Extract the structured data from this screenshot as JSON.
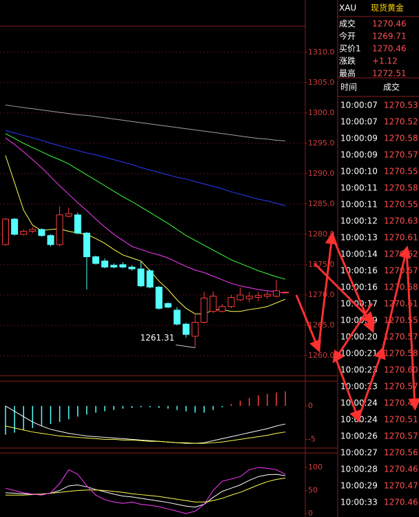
{
  "chart_data": [
    {
      "type": "candlestick",
      "categories": [
        null,
        null,
        null,
        null,
        null,
        null,
        null,
        null,
        null,
        null,
        null,
        null,
        null,
        null,
        null,
        null,
        null,
        null,
        null,
        null,
        null,
        null,
        null,
        null,
        null,
        null,
        null,
        null,
        null,
        null,
        null,
        null
      ],
      "open": [
        1278.3,
        1282.5,
        1280.0,
        1280.5,
        1280.8,
        1279.8,
        1278.3,
        1283.0,
        1283.2,
        1280.2,
        1276.3,
        1275.6,
        1274.9,
        1275.0,
        1274.6,
        1274.3,
        1274.0,
        1271.3,
        1268.6,
        1267.5,
        1265.2,
        1263.2,
        1265.5,
        1267.3,
        1267.3,
        1268.1,
        1269.2,
        1269.4,
        1269.6,
        1269.8,
        1269.8,
        1270.4
      ],
      "high": [
        1282.7,
        1282.7,
        1280.8,
        1281.2,
        1281.0,
        1280.0,
        1284.6,
        1284.4,
        1283.6,
        1280.4,
        1276.5,
        1276.0,
        1275.2,
        1275.4,
        1274.9,
        1275.6,
        1274.2,
        1271.5,
        1268.8,
        1268.0,
        1265.4,
        1267.0,
        1270.5,
        1270.6,
        1268.5,
        1270.0,
        1271.2,
        1270.5,
        1270.5,
        1270.6,
        1272.5,
        1270.6
      ],
      "low": [
        1278.1,
        1279.8,
        1279.8,
        1280.2,
        1279.6,
        1278.0,
        1278.0,
        1282.8,
        1280.0,
        1270.9,
        1275.0,
        1274.4,
        1274.4,
        1274.4,
        1274.0,
        1271.3,
        1271.1,
        1267.6,
        1267.8,
        1265.0,
        1263.0,
        1261.31,
        1265.3,
        1267.0,
        1267.1,
        1267.8,
        1269.0,
        1268.8,
        1269.0,
        1269.4,
        1269.6,
        1270.3
      ],
      "close": [
        1282.5,
        1280.0,
        1280.5,
        1280.8,
        1279.8,
        1278.3,
        1283.2,
        1283.4,
        1280.2,
        1276.3,
        1275.2,
        1274.6,
        1274.6,
        1274.6,
        1274.3,
        1271.5,
        1271.3,
        1267.8,
        1268.0,
        1265.2,
        1263.5,
        1265.5,
        1269.5,
        1269.8,
        1268.1,
        1269.6,
        1270.0,
        1269.8,
        1269.9,
        1270.1,
        1270.7,
        1270.46
      ],
      "up_color": "#ff3c3c",
      "down_color": "#54ffff",
      "ma_series": [
        {
          "color": "#a0a0a0",
          "values": [
            1301.3,
            1301.1,
            1300.9,
            1300.7,
            1300.5,
            1300.3,
            1300.1,
            1299.9,
            1299.7,
            1299.6,
            1299.4,
            1299.2,
            1299.0,
            1298.8,
            1298.6,
            1298.4,
            1298.2,
            1298.0,
            1297.8,
            1297.6,
            1297.4,
            1297.2,
            1297.0,
            1296.8,
            1296.6,
            1296.4,
            1296.2,
            1296.0,
            1295.8,
            1295.7,
            1295.5,
            1295.4
          ]
        },
        {
          "color": "#2a3cff",
          "values": [
            1297.1,
            1296.7,
            1296.3,
            1295.9,
            1295.5,
            1295.0,
            1294.6,
            1294.2,
            1293.8,
            1293.4,
            1293.1,
            1292.7,
            1292.3,
            1291.9,
            1291.5,
            1291.0,
            1290.6,
            1290.2,
            1289.8,
            1289.4,
            1289.1,
            1288.7,
            1288.3,
            1287.9,
            1287.5,
            1287.0,
            1286.6,
            1286.2,
            1285.8,
            1285.5,
            1285.1,
            1284.7
          ]
        },
        {
          "color": "#3cff3c",
          "values": [
            1296.6,
            1295.8,
            1295.0,
            1294.3,
            1293.6,
            1292.9,
            1292.3,
            1291.6,
            1290.7,
            1289.8,
            1288.9,
            1288.0,
            1287.1,
            1286.2,
            1285.4,
            1284.5,
            1283.6,
            1282.7,
            1281.8,
            1280.8,
            1279.8,
            1279.0,
            1278.2,
            1277.4,
            1276.6,
            1275.8,
            1275.2,
            1274.6,
            1274.0,
            1273.5,
            1273.0,
            1272.6
          ]
        },
        {
          "color": "#ff3cff",
          "values": [
            1295.9,
            1294.8,
            1293.6,
            1292.3,
            1291.0,
            1289.5,
            1288.0,
            1286.6,
            1285.2,
            1283.9,
            1282.5,
            1281.2,
            1280.0,
            1279.0,
            1278.0,
            1277.5,
            1277.0,
            1276.6,
            1276.1,
            1275.4,
            1274.7,
            1274.1,
            1273.7,
            1273.1,
            1272.5,
            1271.9,
            1271.5,
            1271.2,
            1270.9,
            1270.7,
            1270.5,
            1270.3
          ]
        },
        {
          "color": "#ffff50",
          "values": [
            1293.0,
            1288.5,
            1284.0,
            1281.5,
            1280.6,
            1280.8,
            1280.9,
            1280.5,
            1280.2,
            1280.0,
            1279.3,
            1278.5,
            1277.5,
            1276.6,
            1276.1,
            1275.6,
            1274.0,
            1272.3,
            1270.9,
            1269.2,
            1267.8,
            1266.9,
            1266.9,
            1267.5,
            1267.6,
            1267.3,
            1267.3,
            1267.6,
            1267.8,
            1268.1,
            1268.7,
            1269.3
          ]
        }
      ],
      "annotations": [
        {
          "text": "1261.31",
          "index": 21,
          "value": 1261.31
        }
      ],
      "ylim": [
        1256.7,
        1314.3
      ],
      "yticks": [
        {
          "value": 1260,
          "label": "1260.0"
        },
        {
          "value": 1265,
          "label": "1265.0"
        },
        {
          "value": 1270,
          "label": "1270.0"
        },
        {
          "value": 1275,
          "label": "1275.0"
        },
        {
          "value": 1280,
          "label": "1280.0"
        },
        {
          "value": 1285,
          "label": "1285.0"
        },
        {
          "value": 1290,
          "label": "1290.0"
        },
        {
          "value": 1295,
          "label": "1295.0"
        },
        {
          "value": 1300,
          "label": "1300.0"
        },
        {
          "value": 1305,
          "label": "1305.0"
        },
        {
          "value": 1310,
          "label": "1310.0"
        }
      ],
      "grid": true
    },
    {
      "type": "bar",
      "values": [
        -4.3,
        -4.0,
        -3.6,
        -3.3,
        -3.0,
        -2.7,
        -2.4,
        -2.0,
        -1.6,
        -1.3,
        -1.0,
        -0.8,
        -0.6,
        -0.4,
        -0.3,
        -0.2,
        -0.2,
        -0.3,
        -0.4,
        -0.6,
        -0.8,
        -1.0,
        -1.0,
        -0.6,
        -0.2,
        0.3,
        0.8,
        1.2,
        1.6,
        1.8,
        2.0,
        2.2
      ],
      "positive_color": "#ff3c3c",
      "negative_color": "#54ffff",
      "lines": [
        {
          "color": "#ffffff",
          "values": [
            0.0,
            -0.8,
            -1.6,
            -2.4,
            -3.0,
            -3.5,
            -3.8,
            -4.1,
            -4.3,
            -4.5,
            -4.6,
            -4.7,
            -4.8,
            -4.9,
            -5.0,
            -5.1,
            -5.2,
            -5.3,
            -5.4,
            -5.5,
            -5.6,
            -5.6,
            -5.5,
            -5.2,
            -4.9,
            -4.6,
            -4.3,
            -4.0,
            -3.7,
            -3.4,
            -3.0,
            -2.7
          ]
        },
        {
          "color": "#ffff50",
          "values": [
            -3.0,
            -3.3,
            -3.6,
            -3.9,
            -4.1,
            -4.3,
            -4.5,
            -4.6,
            -4.7,
            -4.8,
            -4.9,
            -5.0,
            -5.0,
            -5.1,
            -5.1,
            -5.2,
            -5.3,
            -5.3,
            -5.4,
            -5.5,
            -5.5,
            -5.6,
            -5.6,
            -5.5,
            -5.4,
            -5.2,
            -5.0,
            -4.8,
            -4.6,
            -4.4,
            -4.1,
            -3.9
          ]
        }
      ],
      "ylim": [
        -6.1,
        3.5
      ],
      "yticks": [
        0,
        -5
      ]
    },
    {
      "type": "line",
      "series": [
        {
          "color": "#ffffff",
          "values": [
            45,
            44,
            43,
            42,
            42,
            44,
            50,
            60,
            62,
            58,
            52,
            47,
            42,
            38,
            36,
            33,
            30,
            27,
            24,
            20,
            16,
            14,
            20,
            35,
            48,
            55,
            62,
            72,
            80,
            84,
            85,
            82
          ]
        },
        {
          "color": "#ffff50",
          "values": [
            40,
            40,
            40,
            41,
            42,
            44,
            46,
            48,
            50,
            51,
            51,
            50,
            48,
            46,
            43,
            41,
            39,
            37,
            34,
            31,
            28,
            25,
            25,
            28,
            33,
            40,
            46,
            54,
            62,
            69,
            74,
            77
          ]
        },
        {
          "color": "#ff3cff",
          "values": [
            55,
            50,
            45,
            42,
            40,
            45,
            65,
            95,
            85,
            60,
            40,
            30,
            25,
            22,
            25,
            20,
            18,
            15,
            10,
            5,
            0,
            5,
            20,
            50,
            70,
            75,
            80,
            95,
            100,
            98,
            95,
            85
          ]
        }
      ],
      "ylim": [
        0,
        130
      ],
      "yticks": [
        0,
        50,
        100
      ]
    }
  ],
  "quote": {
    "symbol": "XAU",
    "name": "现货黄金",
    "fields": [
      {
        "label": "成交",
        "value": "1270.46"
      },
      {
        "label": "今开",
        "value": "1269.71"
      },
      {
        "label": "买价1",
        "value": "1270.46"
      },
      {
        "label": "涨跌",
        "value": "+1.12"
      },
      {
        "label": "最高",
        "value": "1272.51"
      }
    ],
    "trades_header": [
      "时间",
      "成交"
    ],
    "trades": [
      [
        "10:00:07",
        "1270.53"
      ],
      [
        "10:00:07",
        "1270.52"
      ],
      [
        "10:00:09",
        "1270.58"
      ],
      [
        "10:00:09",
        "1270.57"
      ],
      [
        "10:00:10",
        "1270.55"
      ],
      [
        "10:00:11",
        "1270.58"
      ],
      [
        "10:00:11",
        "1270.55"
      ],
      [
        "10:00:12",
        "1270.63"
      ],
      [
        "10:00:13",
        "1270.61"
      ],
      [
        "10:00:14",
        "1270.62"
      ],
      [
        "10:00:16",
        "1270.57"
      ],
      [
        "10:00:16",
        "1270.58"
      ],
      [
        "10:00:17",
        "1270.61"
      ],
      [
        "10:00:19",
        "1270.55"
      ],
      [
        "10:00:20",
        "1270.57"
      ],
      [
        "10:00:21",
        "1270.58"
      ],
      [
        "10:00:23",
        "1270.60"
      ],
      [
        "10:00:23",
        "1270.57"
      ],
      [
        "10:00:24",
        "1270.47"
      ],
      [
        "10:00:24",
        "1270.51"
      ],
      [
        "10:00:26",
        "1270.57"
      ],
      [
        "10:00:27",
        "1270.56"
      ],
      [
        "10:00:28",
        "1270.46"
      ],
      [
        "10:00:29",
        "1270.47"
      ],
      [
        "10:00:33",
        "1270.46"
      ]
    ]
  }
}
